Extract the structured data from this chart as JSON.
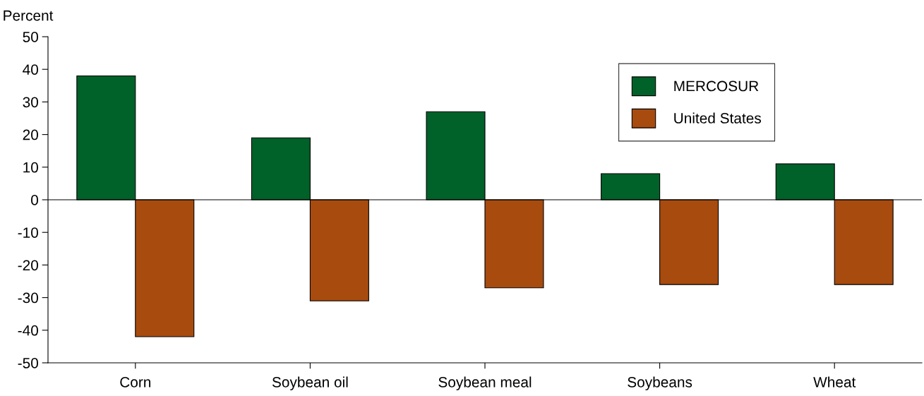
{
  "chart_data": {
    "type": "bar",
    "ylabel": "Percent",
    "categories": [
      "Corn",
      "Soybean oil",
      "Soybean meal",
      "Soybeans",
      "Wheat"
    ],
    "series": [
      {
        "name": "MERCOSUR",
        "color": "#006129",
        "values": [
          38,
          19,
          27,
          8,
          11
        ]
      },
      {
        "name": "United States",
        "color": "#a84b0f",
        "values": [
          -42,
          -31,
          -27,
          -26,
          -26
        ]
      }
    ],
    "ylim": [
      -50,
      50
    ],
    "yticks": [
      -50,
      -40,
      -30,
      -20,
      -10,
      0,
      10,
      20,
      30,
      40,
      50
    ],
    "ref_lines": [
      {
        "axis": "y",
        "value": 0,
        "color": "#000000"
      }
    ],
    "grid": false,
    "legend": "top right"
  }
}
